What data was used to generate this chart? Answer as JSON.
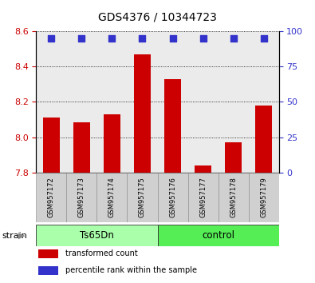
{
  "title": "GDS4376 / 10344723",
  "categories": [
    "GSM957172",
    "GSM957173",
    "GSM957174",
    "GSM957175",
    "GSM957176",
    "GSM957177",
    "GSM957178",
    "GSM957179"
  ],
  "bar_values": [
    8.11,
    8.085,
    8.13,
    8.47,
    8.33,
    7.84,
    7.97,
    8.18
  ],
  "percentile_values": [
    95,
    95,
    95,
    95,
    95,
    95,
    95,
    95
  ],
  "bar_color": "#cc0000",
  "dot_color": "#3333cc",
  "ylim_left": [
    7.8,
    8.6
  ],
  "ylim_right": [
    0,
    100
  ],
  "yticks_left": [
    7.8,
    8.0,
    8.2,
    8.4,
    8.6
  ],
  "yticks_right": [
    0,
    25,
    50,
    75,
    100
  ],
  "groups": [
    {
      "label": "Ts65Dn",
      "start": 0,
      "end": 4,
      "color": "#aaffaa"
    },
    {
      "label": "control",
      "start": 4,
      "end": 8,
      "color": "#55ee55"
    }
  ],
  "group_label": "strain",
  "legend_items": [
    {
      "label": "transformed count",
      "color": "#cc0000"
    },
    {
      "label": "percentile rank within the sample",
      "color": "#3333cc"
    }
  ],
  "background_color": "#ffffff",
  "plot_bg_color": "#ebebeb",
  "tick_label_color_left": "#cc0000",
  "tick_label_color_right": "#3333cc",
  "title_fontsize": 10,
  "tick_fontsize": 8,
  "bar_width": 0.55,
  "dot_size": 28
}
